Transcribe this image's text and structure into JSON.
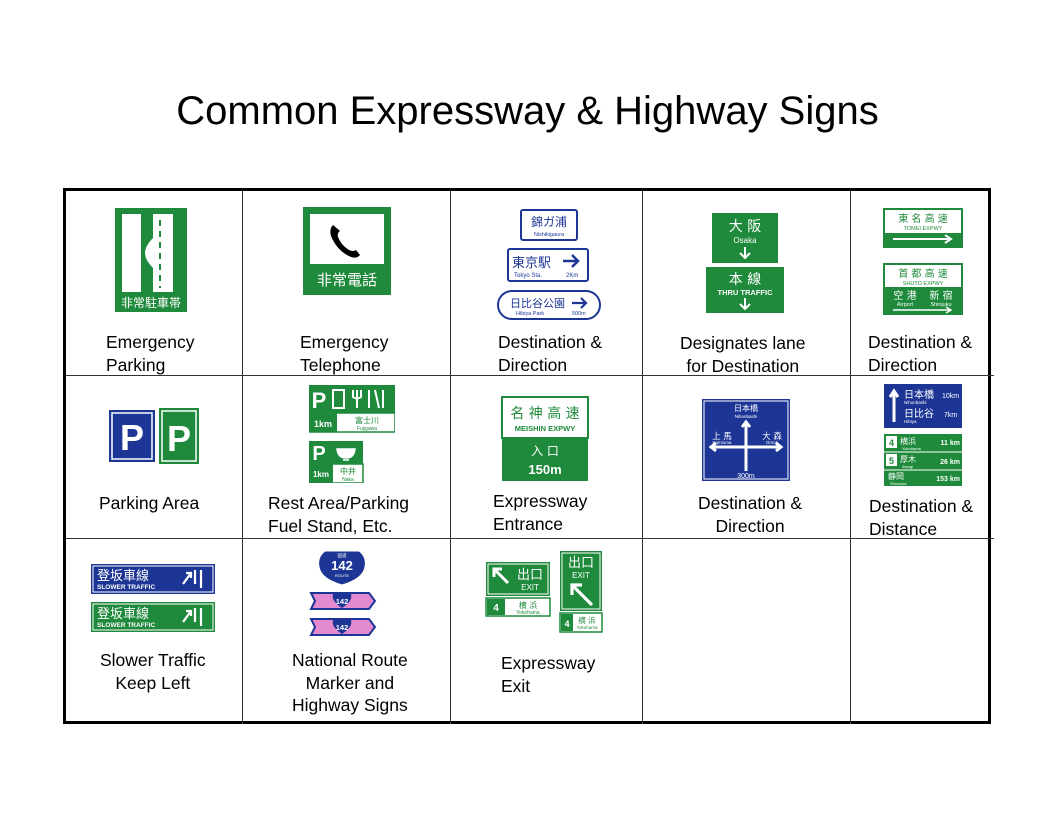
{
  "title": "Common Expressway & Highway Signs",
  "colors": {
    "green": "#1f8a3b",
    "blue": "#1d3696",
    "pink": "#e38ad0",
    "white": "#ffffff"
  },
  "cells": [
    {
      "caption": "Emergency\nParking",
      "icon": "emergency-parking-sign",
      "texts": {
        "label": "非常駐車帯"
      }
    },
    {
      "caption": "Emergency\nTelephone",
      "icon": "telephone-icon",
      "texts": {
        "label": "非常電話"
      }
    },
    {
      "caption": "Destination &\nDirection",
      "icon": "destination-direction-sign",
      "texts": {
        "a_jp": "錦ガ浦",
        "a_en": "Nishikigaura",
        "b_jp": "東京駅",
        "b_en": "Tokyo Sta.",
        "b_dist": "2Km",
        "c_jp": "日比谷公園",
        "c_en": "Hibiya Park",
        "c_dist": "500m"
      }
    },
    {
      "caption": "Designates lane\nfor Destination",
      "icon": "lane-destination-sign",
      "texts": {
        "a_jp": "大 阪",
        "a_en": "Osaka",
        "b_jp": "本 線",
        "b_en": "THRU TRAFFIC"
      }
    },
    {
      "caption": "Destination &\nDirection",
      "icon": "expressway-direction-sign",
      "texts": {
        "a_jp": "東 名 高 速",
        "a_en": "TOMEI EXPWY",
        "b_jp": "首 都 高 速",
        "b_en": "SHUTO EXPWY",
        "c_jp1": "空 港",
        "c_jp2": "新 宿",
        "c_en1": "Airport",
        "c_en2": "Shinjuku"
      }
    },
    {
      "caption": "Parking Area",
      "icon": "parking-sign",
      "texts": {
        "p": "P"
      }
    },
    {
      "caption": "Rest Area/Parking\nFuel Stand, Etc.",
      "icon": "rest-area-sign",
      "texts": {
        "p": "P",
        "a_dist": "1km",
        "a_jp": "富士川",
        "a_en": "Fujigawa",
        "b_dist": "1km",
        "b_jp": "中井",
        "b_en": "Naka"
      }
    },
    {
      "caption": "Expressway\nEntrance",
      "icon": "expressway-entrance-sign",
      "texts": {
        "jp": "名 神 高 速",
        "en": "MEISHIN EXPWY",
        "entry": "入 口",
        "dist": "150m"
      }
    },
    {
      "caption": "Destination &\nDirection",
      "icon": "intersection-sign",
      "texts": {
        "top_jp": "日本橋",
        "top_en": "Nihonbashi",
        "left_jp": "上 馬",
        "left_en": "Kamiuma",
        "right_jp": "大 森",
        "right_en": "Omori",
        "dist": "300m"
      }
    },
    {
      "caption": "Destination &\nDistance",
      "icon": "distance-sign",
      "texts": {
        "a_jp": "日本橋",
        "a_en": "Nihonbashi",
        "a_dist": "10km",
        "b_jp": "日比谷",
        "b_en": "Hibiya",
        "b_dist": "7km",
        "r1_no": "4",
        "r1_jp": "横浜",
        "r1_en": "Yokohama",
        "r1_dist": "11 km",
        "r2_no": "5",
        "r2_jp": "厚木",
        "r2_en": "Atsugi",
        "r2_dist": "26 km",
        "r3_jp": "静岡",
        "r3_en": "Shizuoka",
        "r3_dist": "153 km"
      }
    },
    {
      "caption": "Slower Traffic\nKeep Left",
      "icon": "slower-traffic-sign",
      "texts": {
        "jp": "登坂車線",
        "en": "SLOWER  TRAFFIC"
      }
    },
    {
      "caption": "National Route\nMarker and\nHighway Signs",
      "icon": "route-marker-icon",
      "texts": {
        "top": "国道",
        "num": "142",
        "bottom": "ROUTE"
      }
    },
    {
      "caption": "Expressway\nExit",
      "icon": "expressway-exit-sign",
      "texts": {
        "jp": "出口",
        "en": "EXIT",
        "no": "4",
        "dest_jp": "横 浜",
        "dest_en": "Yokohama"
      }
    },
    {
      "caption": "",
      "icon": ""
    },
    {
      "caption": "",
      "icon": ""
    }
  ]
}
